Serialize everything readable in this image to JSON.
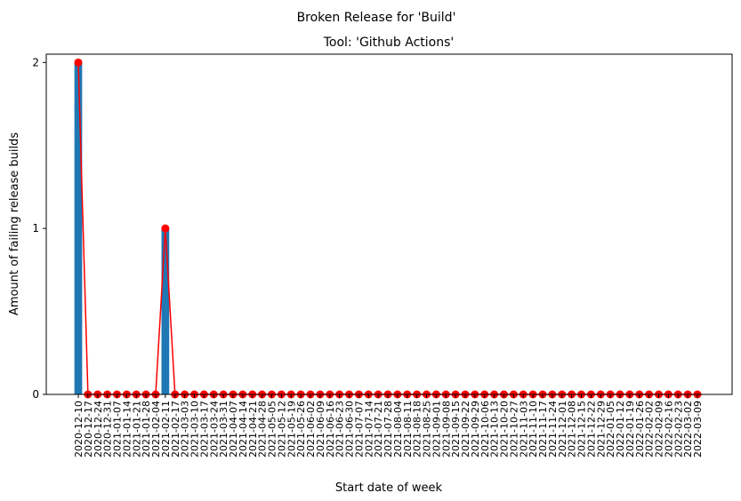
{
  "chart_data": {
    "type": "bar",
    "suptitle": "Broken Release for 'Build'",
    "title": "Tool: 'Github Actions'",
    "xlabel": "Start date of week",
    "ylabel": "Amount of failing release builds",
    "yticks": [
      0,
      1,
      2
    ],
    "ylim": [
      0,
      2.05
    ],
    "grid": false,
    "bar_color": "#1f77b4",
    "line_color": "#ff0000",
    "categories": [
      "2020-12-10",
      "2020-12-17",
      "2020-12-24",
      "2020-12-31",
      "2021-01-07",
      "2021-01-14",
      "2021-01-21",
      "2021-01-28",
      "2021-02-04",
      "2021-02-11",
      "2021-02-17",
      "2021-03-03",
      "2021-03-10",
      "2021-03-17",
      "2021-03-24",
      "2021-03-31",
      "2021-04-07",
      "2021-04-14",
      "2021-04-21",
      "2021-04-28",
      "2021-05-05",
      "2021-05-12",
      "2021-05-19",
      "2021-05-26",
      "2021-06-02",
      "2021-06-09",
      "2021-06-16",
      "2021-06-23",
      "2021-06-30",
      "2021-07-07",
      "2021-07-14",
      "2021-07-21",
      "2021-07-28",
      "2021-08-04",
      "2021-08-11",
      "2021-08-18",
      "2021-08-25",
      "2021-09-01",
      "2021-09-08",
      "2021-09-15",
      "2021-09-22",
      "2021-09-29",
      "2021-10-06",
      "2021-10-13",
      "2021-10-20",
      "2021-10-27",
      "2021-11-03",
      "2021-11-10",
      "2021-11-17",
      "2021-11-24",
      "2021-12-01",
      "2021-12-08",
      "2021-12-15",
      "2021-12-22",
      "2021-12-29",
      "2022-01-05",
      "2022-01-12",
      "2022-01-19",
      "2022-01-26",
      "2022-02-02",
      "2022-02-09",
      "2022-02-16",
      "2022-02-23",
      "2022-03-02",
      "2022-03-09"
    ],
    "values": [
      2,
      0,
      0,
      0,
      0,
      0,
      0,
      0,
      0,
      1,
      0,
      0,
      0,
      0,
      0,
      0,
      0,
      0,
      0,
      0,
      0,
      0,
      0,
      0,
      0,
      0,
      0,
      0,
      0,
      0,
      0,
      0,
      0,
      0,
      0,
      0,
      0,
      0,
      0,
      0,
      0,
      0,
      0,
      0,
      0,
      0,
      0,
      0,
      0,
      0,
      0,
      0,
      0,
      0,
      0,
      0,
      0,
      0,
      0,
      0,
      0,
      0,
      0,
      0,
      0
    ]
  }
}
